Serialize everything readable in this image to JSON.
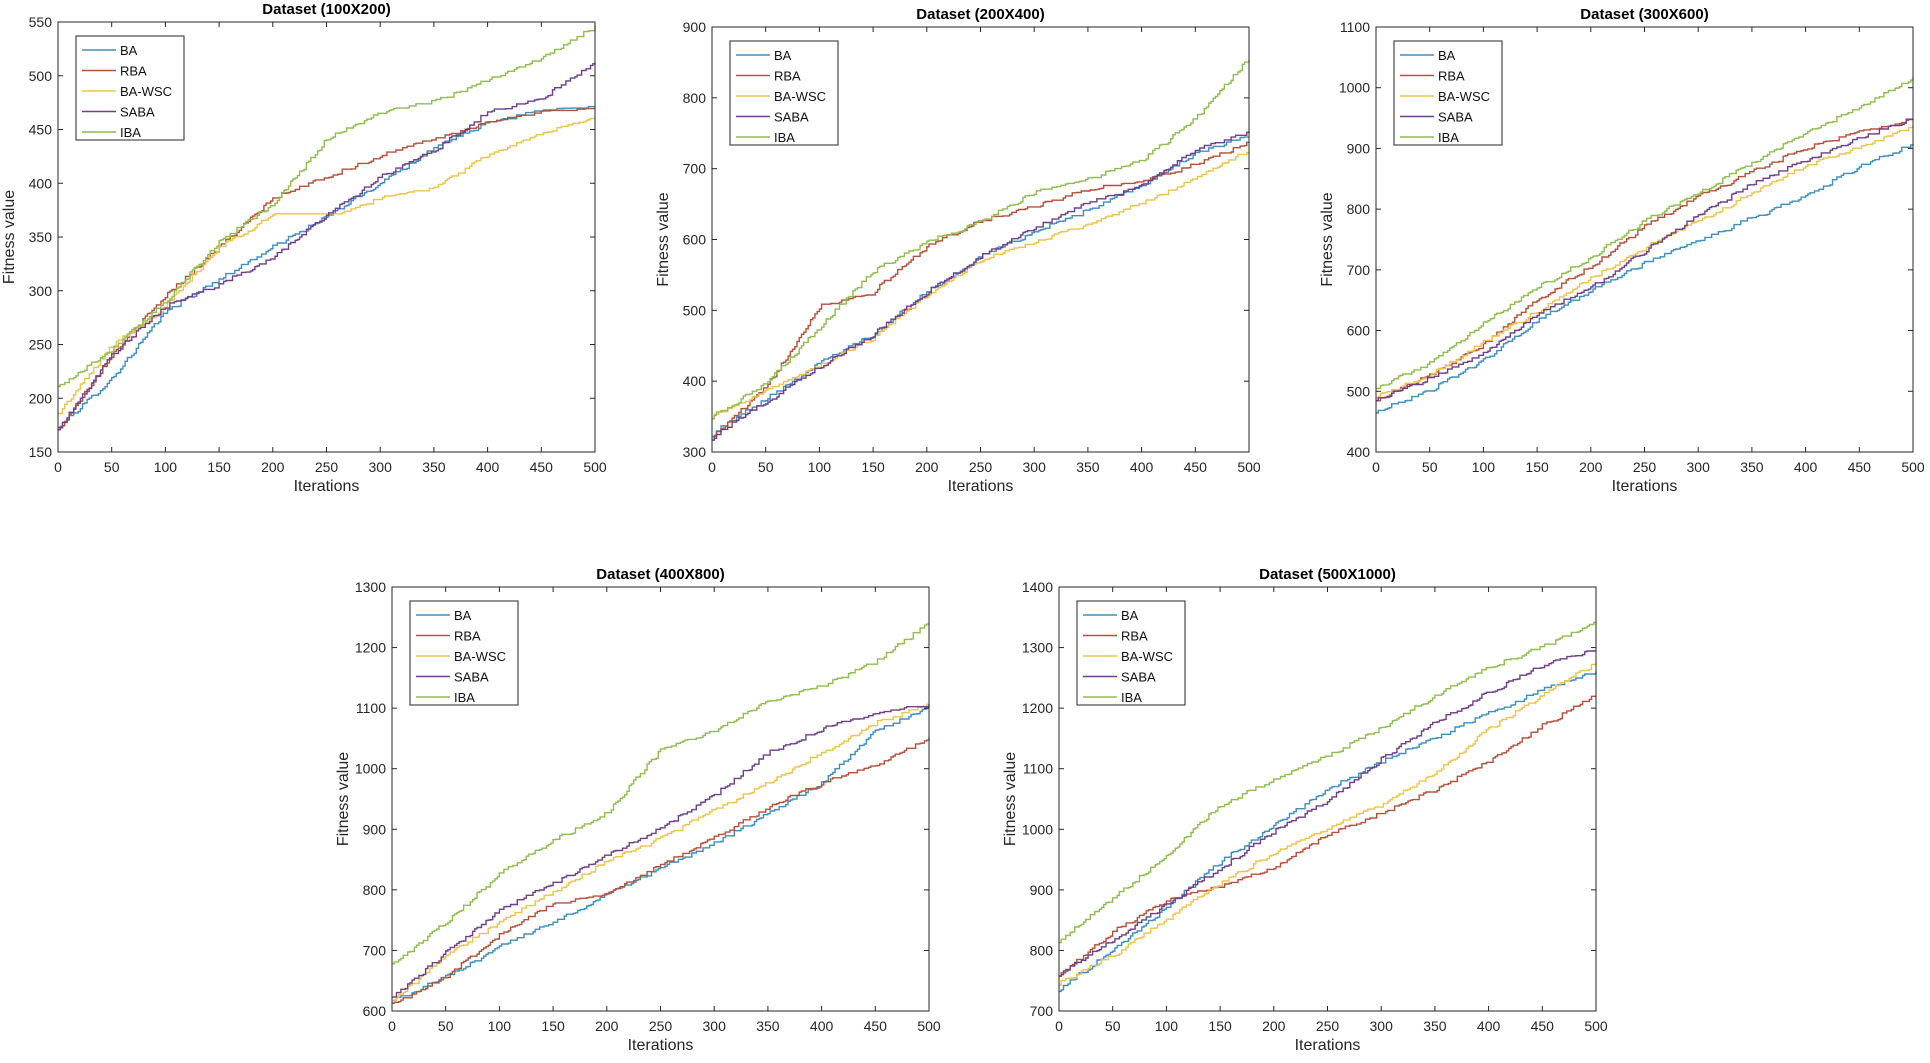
{
  "colors": {
    "BA": "#3f8fbf",
    "RBA": "#b5503a",
    "BA-WSC": "#ecc44a",
    "SABA": "#6e3f8a",
    "IBA": "#8fbd4f",
    "axis": "#262626"
  },
  "chart_data": [
    {
      "type": "line",
      "title": "Dataset (100X200)",
      "xlabel": "Iterations",
      "ylabel": "Fitness value",
      "xlim": [
        0,
        500
      ],
      "ylim": [
        150,
        550
      ],
      "xticks": [
        0,
        50,
        100,
        150,
        200,
        250,
        300,
        350,
        400,
        450,
        500
      ],
      "yticks": [
        150,
        200,
        250,
        300,
        350,
        400,
        450,
        500,
        550
      ],
      "legend": "top-left",
      "x": [
        0,
        50,
        100,
        150,
        200,
        250,
        300,
        350,
        400,
        450,
        500
      ],
      "series": [
        {
          "name": "BA",
          "values": [
            172,
            218,
            280,
            310,
            340,
            368,
            400,
            432,
            455,
            467,
            470
          ]
        },
        {
          "name": "RBA",
          "values": [
            170,
            240,
            295,
            340,
            385,
            405,
            425,
            440,
            455,
            465,
            468
          ]
        },
        {
          "name": "BA-WSC",
          "values": [
            185,
            248,
            285,
            340,
            370,
            365,
            385,
            395,
            425,
            445,
            460
          ]
        },
        {
          "name": "SABA",
          "values": [
            170,
            240,
            285,
            305,
            330,
            370,
            405,
            430,
            465,
            478,
            512
          ]
        },
        {
          "name": "IBA",
          "values": [
            210,
            245,
            290,
            345,
            380,
            440,
            465,
            475,
            495,
            515,
            545
          ]
        }
      ]
    },
    {
      "type": "line",
      "title": "Dataset (200X400)",
      "xlabel": "Iterations",
      "ylabel": "Fitness value",
      "xlim": [
        0,
        500
      ],
      "ylim": [
        300,
        900
      ],
      "xticks": [
        0,
        50,
        100,
        150,
        200,
        250,
        300,
        350,
        400,
        450,
        500
      ],
      "yticks": [
        300,
        400,
        500,
        600,
        700,
        800,
        900
      ],
      "legend": "top-left",
      "x": [
        0,
        50,
        100,
        150,
        200,
        250,
        300,
        350,
        400,
        450,
        500
      ],
      "series": [
        {
          "name": "BA",
          "values": [
            325,
            375,
            425,
            465,
            525,
            575,
            610,
            640,
            675,
            720,
            745
          ]
        },
        {
          "name": "RBA",
          "values": [
            320,
            390,
            505,
            525,
            590,
            625,
            645,
            670,
            680,
            705,
            735
          ]
        },
        {
          "name": "BA-WSC",
          "values": [
            350,
            385,
            420,
            460,
            520,
            570,
            595,
            620,
            650,
            685,
            725
          ]
        },
        {
          "name": "SABA",
          "values": [
            320,
            370,
            420,
            465,
            525,
            575,
            615,
            650,
            675,
            725,
            750
          ]
        },
        {
          "name": "IBA",
          "values": [
            350,
            395,
            475,
            555,
            595,
            625,
            665,
            685,
            710,
            770,
            855
          ]
        }
      ]
    },
    {
      "type": "line",
      "title": "Dataset (300X600)",
      "xlabel": "Iterations",
      "ylabel": "Fitness value",
      "xlim": [
        0,
        500
      ],
      "ylim": [
        400,
        1100
      ],
      "xticks": [
        0,
        50,
        100,
        150,
        200,
        250,
        300,
        350,
        400,
        450,
        500
      ],
      "yticks": [
        400,
        500,
        600,
        700,
        800,
        900,
        1000,
        1100
      ],
      "legend": "top-left",
      "x": [
        0,
        50,
        100,
        150,
        200,
        250,
        300,
        350,
        400,
        450,
        500
      ],
      "series": [
        {
          "name": "BA",
          "values": [
            465,
            500,
            550,
            615,
            665,
            710,
            745,
            785,
            820,
            870,
            905
          ]
        },
        {
          "name": "RBA",
          "values": [
            485,
            525,
            575,
            650,
            705,
            770,
            820,
            860,
            900,
            925,
            945
          ]
        },
        {
          "name": "BA-WSC",
          "values": [
            490,
            525,
            580,
            630,
            685,
            735,
            780,
            825,
            870,
            900,
            935
          ]
        },
        {
          "name": "SABA",
          "values": [
            485,
            520,
            560,
            625,
            670,
            730,
            790,
            840,
            880,
            915,
            950
          ]
        },
        {
          "name": "IBA",
          "values": [
            505,
            545,
            610,
            670,
            720,
            780,
            825,
            875,
            925,
            965,
            1015
          ]
        }
      ]
    },
    {
      "type": "line",
      "title": "Dataset (400X800)",
      "xlabel": "Iterations",
      "ylabel": "Fitness value",
      "xlim": [
        0,
        500
      ],
      "ylim": [
        600,
        1300
      ],
      "xticks": [
        0,
        50,
        100,
        150,
        200,
        250,
        300,
        350,
        400,
        450,
        500
      ],
      "yticks": [
        600,
        700,
        800,
        900,
        1000,
        1100,
        1200,
        1300
      ],
      "legend": "top-left",
      "x": [
        0,
        50,
        100,
        150,
        200,
        250,
        300,
        350,
        400,
        450,
        500
      ],
      "series": [
        {
          "name": "BA",
          "values": [
            615,
            655,
            705,
            745,
            790,
            835,
            875,
            925,
            975,
            1060,
            1100
          ]
        },
        {
          "name": "RBA",
          "values": [
            610,
            655,
            725,
            775,
            790,
            840,
            885,
            935,
            975,
            1005,
            1050
          ]
        },
        {
          "name": "BA-WSC",
          "values": [
            615,
            690,
            745,
            795,
            845,
            885,
            930,
            975,
            1025,
            1075,
            1105
          ]
        },
        {
          "name": "SABA",
          "values": [
            620,
            695,
            765,
            810,
            855,
            900,
            955,
            1025,
            1065,
            1090,
            1105
          ]
        },
        {
          "name": "IBA",
          "values": [
            675,
            745,
            825,
            880,
            925,
            1030,
            1060,
            1110,
            1135,
            1175,
            1240
          ]
        }
      ]
    },
    {
      "type": "line",
      "title": "Dataset (500X1000)",
      "xlabel": "Iterations",
      "ylabel": "Fitness value",
      "xlim": [
        0,
        500
      ],
      "ylim": [
        700,
        1400
      ],
      "xticks": [
        0,
        50,
        100,
        150,
        200,
        250,
        300,
        350,
        400,
        450,
        500
      ],
      "yticks": [
        700,
        800,
        900,
        1000,
        1100,
        1200,
        1300,
        1400
      ],
      "legend": "top-left",
      "x": [
        0,
        50,
        100,
        150,
        200,
        250,
        300,
        350,
        400,
        450,
        500
      ],
      "series": [
        {
          "name": "BA",
          "values": [
            735,
            800,
            870,
            945,
            1005,
            1065,
            1110,
            1150,
            1190,
            1230,
            1260
          ]
        },
        {
          "name": "RBA",
          "values": [
            760,
            830,
            880,
            905,
            935,
            990,
            1025,
            1065,
            1110,
            1170,
            1220
          ]
        },
        {
          "name": "BA-WSC",
          "values": [
            745,
            790,
            850,
            910,
            960,
            1000,
            1040,
            1090,
            1165,
            1220,
            1275
          ]
        },
        {
          "name": "SABA",
          "values": [
            760,
            815,
            875,
            935,
            995,
            1045,
            1115,
            1175,
            1225,
            1270,
            1295
          ]
        },
        {
          "name": "IBA",
          "values": [
            815,
            885,
            955,
            1040,
            1080,
            1120,
            1165,
            1220,
            1265,
            1300,
            1340
          ]
        }
      ]
    }
  ]
}
